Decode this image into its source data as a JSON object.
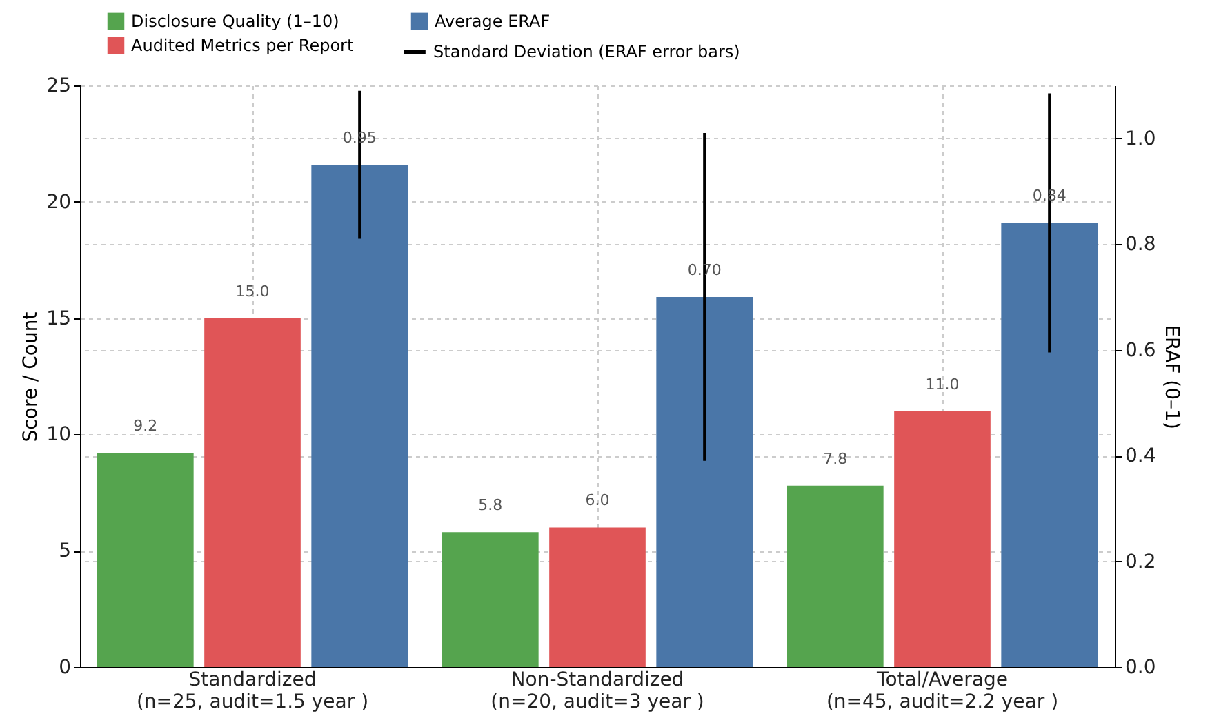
{
  "chart_data": {
    "type": "bar",
    "ylabel": "Score / Count",
    "y2label": "ERAF (0–1)",
    "categories": [
      "Standardized\n(n=25, audit=1.5 year )",
      "Non-Standardized\n(n=20, audit=3 year )",
      "Total/Average\n(n=45, audit=2.2  year )"
    ],
    "series": [
      {
        "name": "Disclosure Quality (1–10)",
        "color": "#55a44e",
        "values": [
          9.2,
          5.8,
          7.8
        ],
        "value_labels": [
          "9.2",
          "5.8",
          "7.8"
        ]
      },
      {
        "name": "Audited Metrics per Report",
        "color": "#e05557",
        "values": [
          15,
          6,
          11
        ],
        "value_labels": [
          "15.0",
          "6.0",
          "11.0"
        ]
      },
      {
        "name": "Average ERAF",
        "color": "#4a76a8",
        "axis": "y2",
        "values": [
          0.95,
          0.7,
          0.84
        ],
        "errors": [
          0.14,
          0.31,
          0.245
        ],
        "value_labels": [
          "0.95",
          "0.70",
          "0.84"
        ]
      }
    ],
    "annotations": [
      "Standard Deviation (ERAF error bars)"
    ],
    "ylim": [
      0,
      25
    ],
    "yticks": [
      0,
      5,
      10,
      15,
      20,
      25
    ],
    "y2lim": [
      0,
      1.1
    ],
    "y2ticks": [
      {
        "value": 0,
        "label": "0.0"
      },
      0.2,
      0.4,
      0.6,
      0.8,
      {
        "value": 1,
        "label": "1.0"
      }
    ],
    "grid": true,
    "legend": "top left"
  }
}
